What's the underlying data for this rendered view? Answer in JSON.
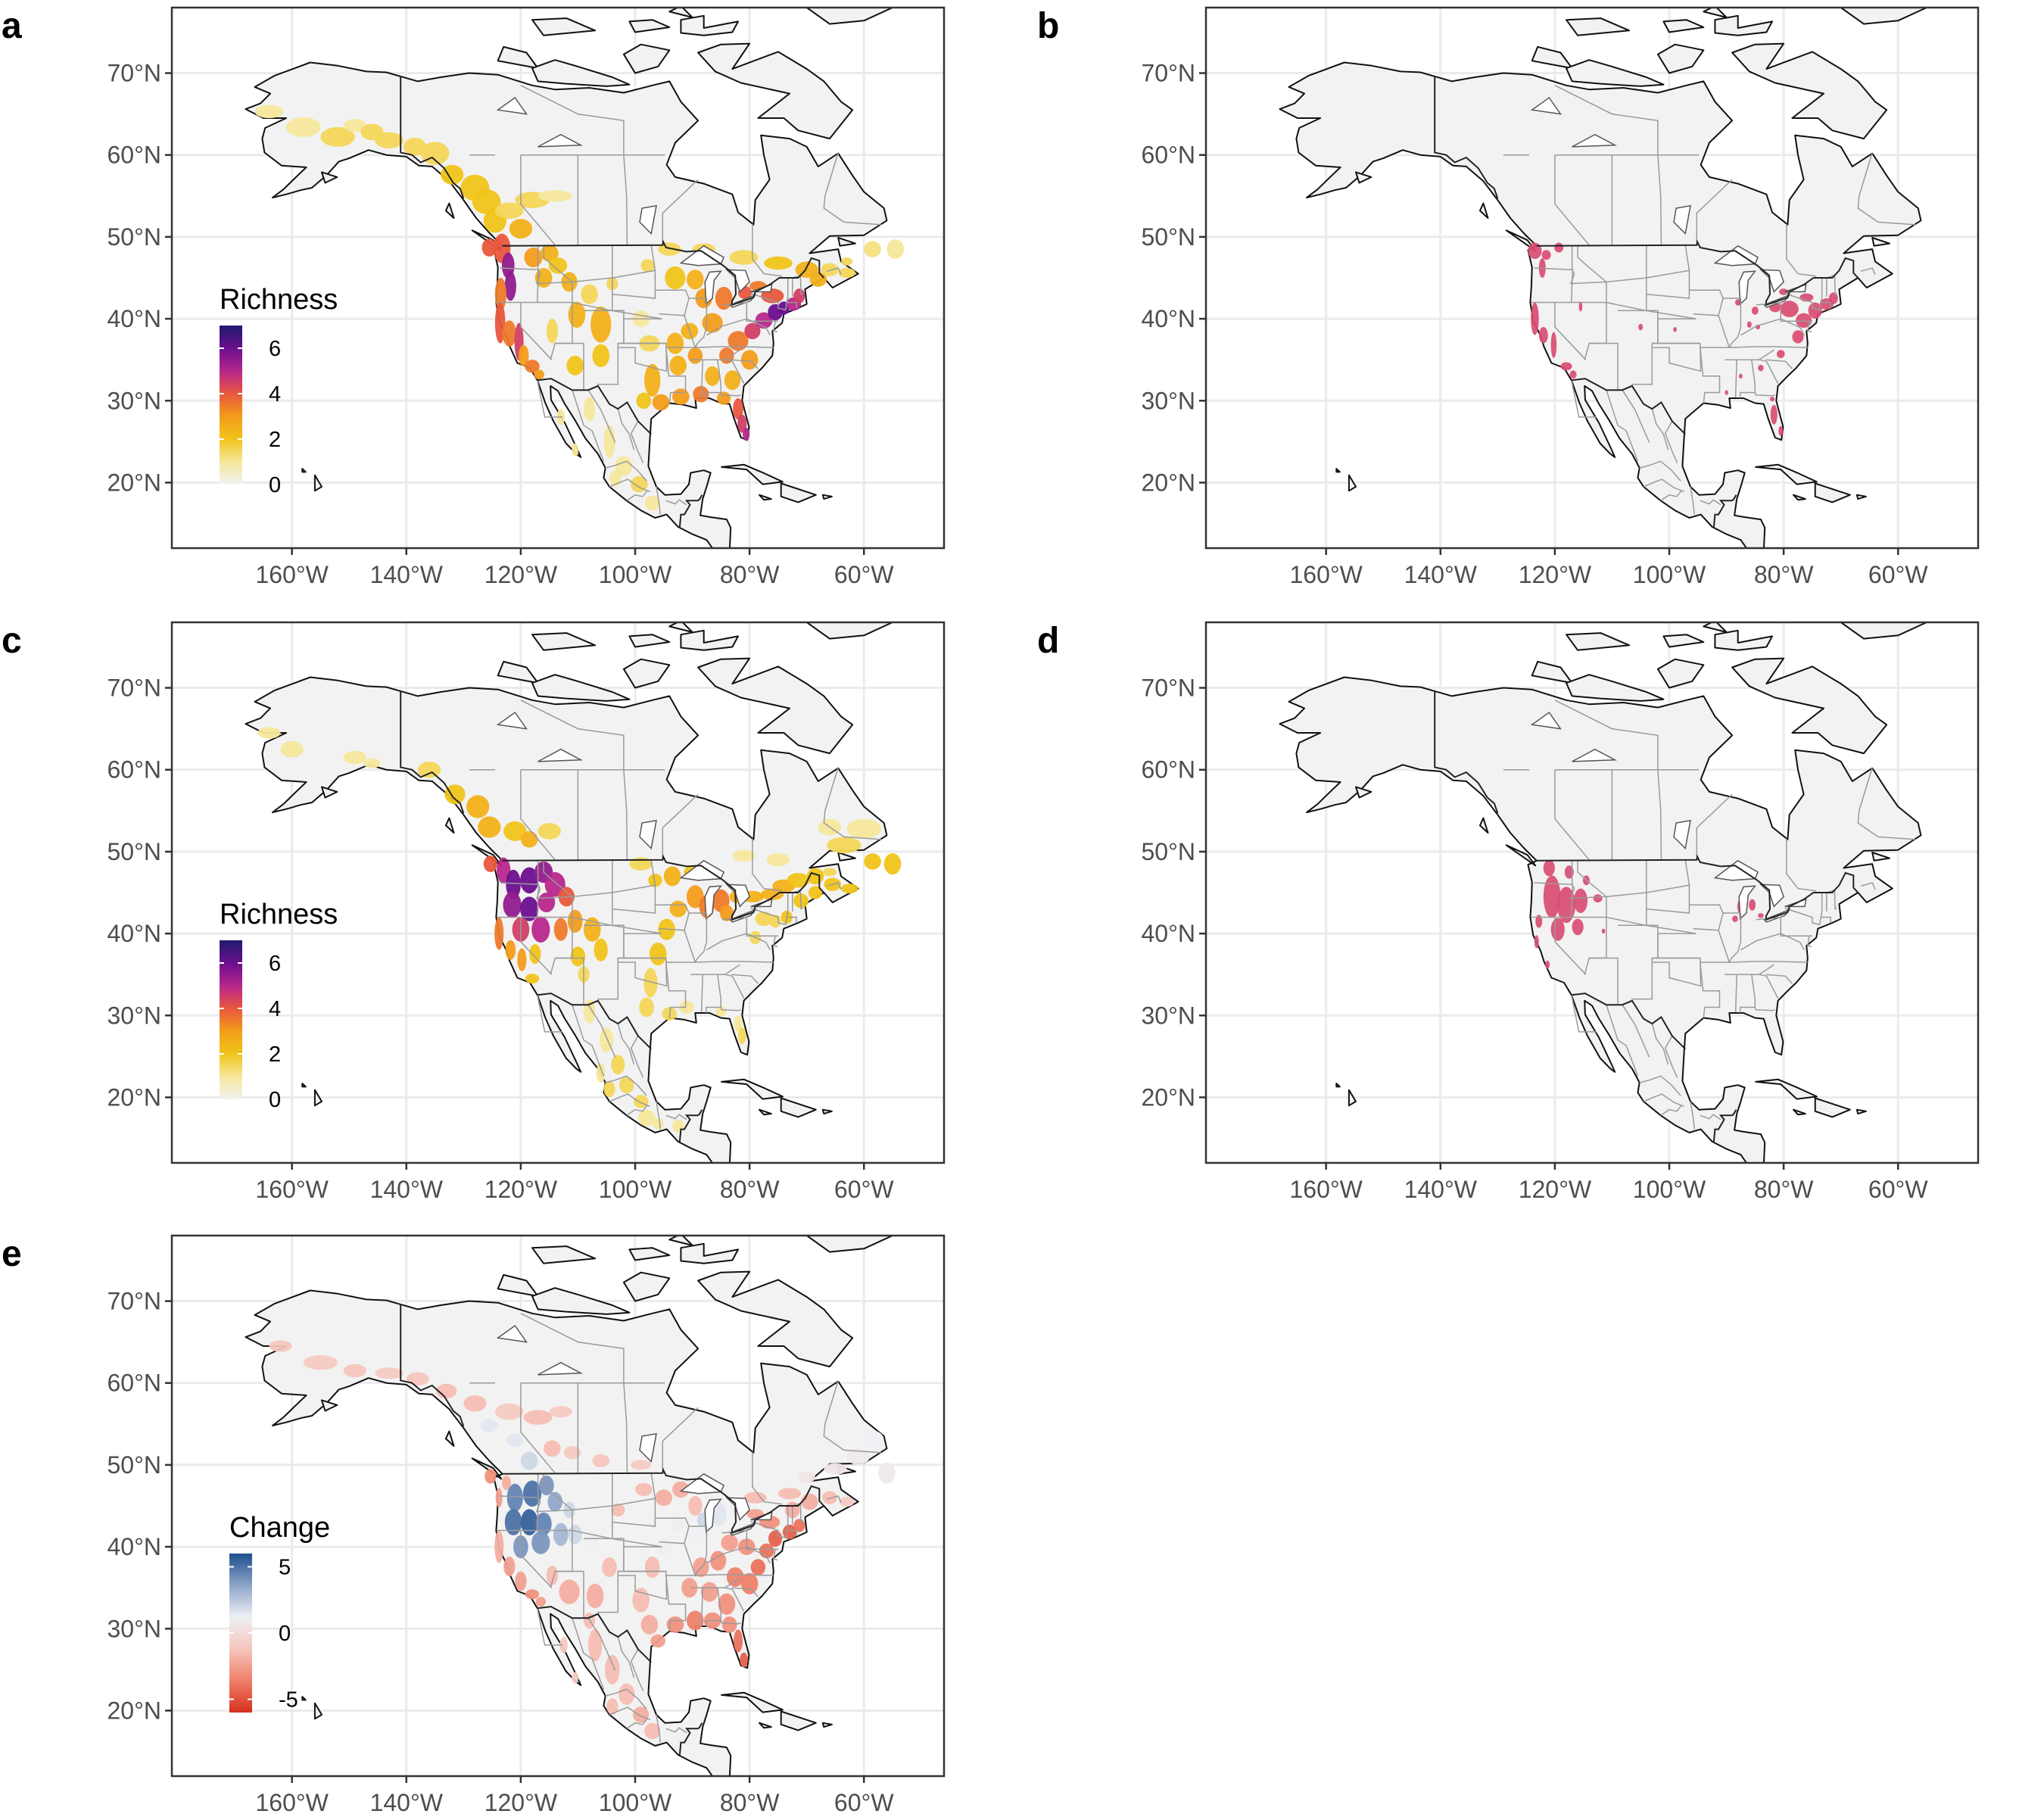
{
  "figure": {
    "lon_ticks": [
      "160°W",
      "140°W",
      "120°W",
      "100°W",
      "80°W",
      "60°W"
    ],
    "lat_ticks": [
      "70°N",
      "60°N",
      "50°N",
      "40°N",
      "30°N",
      "20°N"
    ],
    "lon_values": [
      -160,
      -140,
      -120,
      -100,
      -80,
      -60
    ],
    "lat_values": [
      70,
      60,
      50,
      40,
      30,
      20
    ],
    "extent": {
      "lon_min": -181,
      "lon_max": -46,
      "lat_min": 12,
      "lat_max": 78
    },
    "land_color": "#f2f2f2",
    "water_color": "#ffffff"
  },
  "panels": [
    {
      "letter": "a",
      "kind": "richness",
      "legend": {
        "title": "Richness",
        "ticks": [
          "6",
          "4",
          "2",
          "0"
        ],
        "tick_values": [
          6,
          4,
          2,
          0
        ],
        "range": [
          0,
          7
        ],
        "colors": [
          "#1f1b6e",
          "#6a0f8e",
          "#b7278c",
          "#e8573d",
          "#f39c1b",
          "#f0c419",
          "#f6e79b",
          "#f2f2f2"
        ]
      }
    },
    {
      "letter": "b",
      "kind": "hotspot",
      "color": "#d94d72"
    },
    {
      "letter": "c",
      "kind": "richness",
      "legend": {
        "title": "Richness",
        "ticks": [
          "6",
          "4",
          "2",
          "0"
        ],
        "tick_values": [
          6,
          4,
          2,
          0
        ],
        "range": [
          0,
          7
        ],
        "colors": [
          "#1f1b6e",
          "#6a0f8e",
          "#b7278c",
          "#e8573d",
          "#f39c1b",
          "#f0c419",
          "#f6e79b",
          "#f2f2f2"
        ]
      }
    },
    {
      "letter": "d",
      "kind": "hotspot",
      "color": "#d94d72"
    },
    {
      "letter": "e",
      "kind": "change",
      "legend": {
        "title": "Change",
        "ticks": [
          "5",
          "0",
          "-5"
        ],
        "tick_values": [
          5,
          0,
          -5
        ],
        "range": [
          -6,
          6
        ],
        "colors": [
          "#1f4f8f",
          "#8da4c8",
          "#eef0f4",
          "#f6c6bd",
          "#ee7f68",
          "#d7301f"
        ]
      }
    }
  ]
}
